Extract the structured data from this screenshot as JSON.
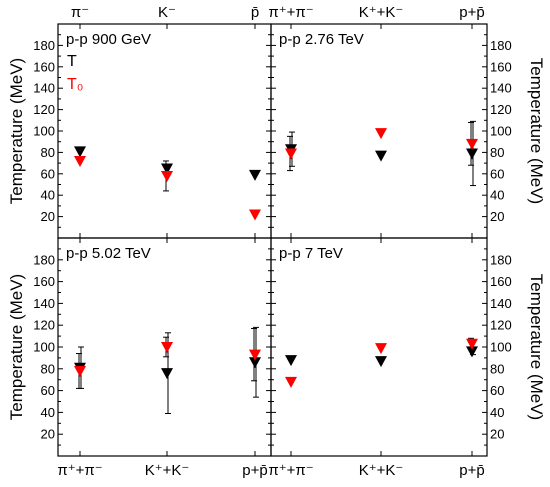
{
  "chart_data": [
    {
      "type": "scatter",
      "title": "p-p 900 GeV",
      "categories": [
        "π⁻",
        "K⁻",
        "p̄"
      ],
      "category_label_side": "top",
      "ylabel": "Temperature (MeV)",
      "ylabel_side": "left",
      "ylim": [
        0,
        200
      ],
      "yticks": [
        20,
        40,
        60,
        80,
        100,
        120,
        140,
        160,
        180
      ],
      "legend": [
        {
          "label": "T",
          "color": "#000000"
        },
        {
          "label": "T₀",
          "color": "#ff0000"
        }
      ],
      "legend_position": "top-left",
      "series": [
        {
          "name": "T",
          "color": "#000000",
          "values": [
            81,
            65,
            59
          ],
          "errors": [
            0,
            4,
            0
          ]
        },
        {
          "name": "T₀",
          "color": "#ff0000",
          "values": [
            72,
            58,
            22
          ],
          "errors": [
            0,
            14,
            0
          ]
        }
      ]
    },
    {
      "type": "scatter",
      "title": "p-p 2.76 TeV",
      "categories": [
        "π⁺+π⁻",
        "K⁺+K⁻",
        "p+p̄"
      ],
      "category_label_side": "top",
      "ylabel": "Temperature (MeV)",
      "ylabel_side": "right",
      "ylim": [
        0,
        200
      ],
      "yticks": [
        20,
        40,
        60,
        80,
        100,
        120,
        140,
        160,
        180
      ],
      "series": [
        {
          "name": "T",
          "color": "#000000",
          "values": [
            83,
            77,
            79
          ],
          "errors": [
            16,
            0,
            30
          ]
        },
        {
          "name": "T₀",
          "color": "#ff0000",
          "values": [
            79,
            98,
            88
          ],
          "errors": [
            16,
            0,
            20
          ]
        }
      ]
    },
    {
      "type": "scatter",
      "title": "p-p 5.02 TeV",
      "categories": [
        "π⁺+π⁻",
        "K⁺+K⁻",
        "p+p̄"
      ],
      "category_label_side": "bottom",
      "ylabel": "Temperature (MeV)",
      "ylabel_side": "left",
      "ylim": [
        0,
        200
      ],
      "yticks": [
        20,
        40,
        60,
        80,
        100,
        120,
        140,
        160,
        180
      ],
      "series": [
        {
          "name": "T",
          "color": "#000000",
          "values": [
            81,
            76,
            86
          ],
          "errors": [
            19,
            37,
            32
          ]
        },
        {
          "name": "T₀",
          "color": "#ff0000",
          "values": [
            78,
            100,
            93
          ],
          "errors": [
            16,
            9,
            24
          ]
        }
      ]
    },
    {
      "type": "scatter",
      "title": "p-p 7 TeV",
      "categories": [
        "π⁺+π⁻",
        "K⁺+K⁻",
        "p+p̄"
      ],
      "category_label_side": "bottom",
      "ylabel": "Temperature (MeV)",
      "ylabel_side": "right",
      "ylim": [
        0,
        200
      ],
      "yticks": [
        20,
        40,
        60,
        80,
        100,
        120,
        140,
        160,
        180
      ],
      "series": [
        {
          "name": "T",
          "color": "#000000",
          "values": [
            88,
            87,
            96
          ],
          "errors": [
            0,
            0,
            3
          ]
        },
        {
          "name": "T₀",
          "color": "#ff0000",
          "values": [
            68,
            99,
            103
          ],
          "errors": [
            0,
            0,
            5
          ]
        }
      ]
    }
  ]
}
